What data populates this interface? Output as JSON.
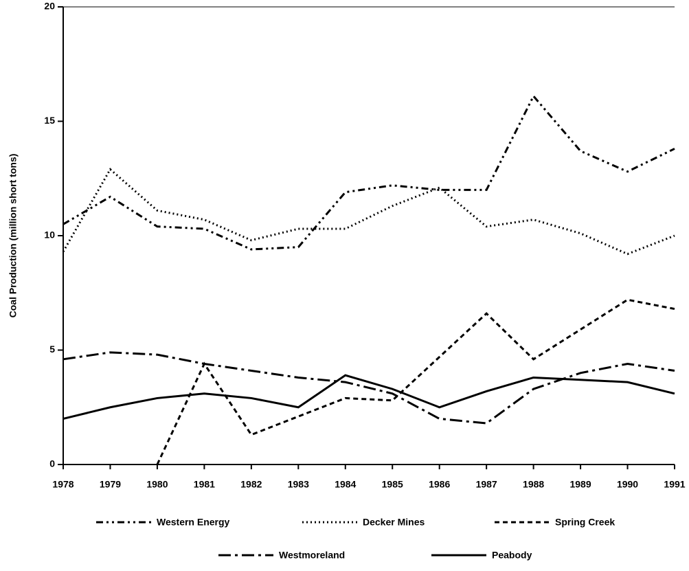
{
  "chart_data": {
    "type": "line",
    "y_label": "Coal Production (million short tons)",
    "x": [
      1978,
      1979,
      1980,
      1981,
      1982,
      1983,
      1984,
      1985,
      1986,
      1987,
      1988,
      1989,
      1990,
      1991
    ],
    "xlim": [
      1978,
      1991
    ],
    "xticks": [
      1978,
      1979,
      1980,
      1981,
      1982,
      1983,
      1984,
      1985,
      1986,
      1987,
      1988,
      1989,
      1990,
      1991
    ],
    "ylim": [
      0,
      20
    ],
    "yticks": [
      0,
      5,
      10,
      15,
      20
    ],
    "grid": false,
    "legend": "bottom",
    "series": [
      {
        "name": "Western Energy",
        "color": "#000000",
        "dash": "10 5 3 5 3 5",
        "values": [
          10.5,
          11.7,
          10.4,
          10.3,
          9.4,
          9.5,
          11.9,
          12.2,
          12.0,
          12.0,
          16.1,
          13.7,
          12.8,
          13.8
        ]
      },
      {
        "name": "Decker Mines",
        "color": "#000000",
        "dash": "2 4",
        "values": [
          9.3,
          12.9,
          11.1,
          10.7,
          9.8,
          10.3,
          10.3,
          11.3,
          12.1,
          10.4,
          10.7,
          10.1,
          9.2,
          10.0
        ]
      },
      {
        "name": "Spring Creek",
        "color": "#000000",
        "dash": "7 5",
        "values": [
          null,
          null,
          0,
          4.4,
          1.3,
          2.1,
          2.9,
          2.8,
          4.7,
          6.6,
          4.6,
          5.9,
          7.2,
          6.8
        ]
      },
      {
        "name": "Westmoreland",
        "color": "#000000",
        "dash": "18 6 4 6",
        "values": [
          4.6,
          4.9,
          4.8,
          4.4,
          4.1,
          3.8,
          3.6,
          3.1,
          2.0,
          1.8,
          3.3,
          4.0,
          4.4,
          4.1
        ]
      },
      {
        "name": "Peabody",
        "color": "#000000",
        "dash": "none",
        "values": [
          2.0,
          2.5,
          2.9,
          3.1,
          2.9,
          2.5,
          3.9,
          3.3,
          2.5,
          3.2,
          3.8,
          3.7,
          3.6,
          3.1
        ]
      }
    ]
  }
}
